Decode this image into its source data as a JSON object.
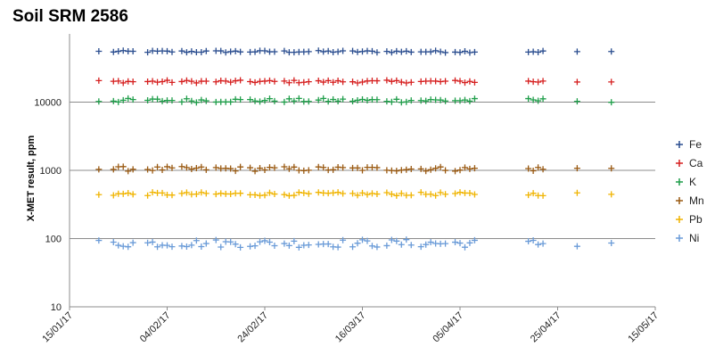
{
  "chart_data": {
    "type": "scatter",
    "title": "Soil SRM 2586",
    "xlabel": "",
    "ylabel": "X-MET result, ppm",
    "x_scale": "date",
    "y_scale": "log",
    "xlim": [
      "2017-01-15",
      "2017-05-15"
    ],
    "ylim": [
      10,
      100000
    ],
    "x_ticks": [
      "15/01/17",
      "04/02/17",
      "24/02/17",
      "16/03/17",
      "05/04/17",
      "25/04/17",
      "15/05/17"
    ],
    "y_ticks": [
      {
        "value": 10,
        "label": "10"
      },
      {
        "value": 100,
        "label": "100"
      },
      {
        "value": 1000,
        "label": "1000"
      },
      {
        "value": 10000,
        "label": "10000"
      }
    ],
    "grid": "horizontal major lines",
    "legend_position": "right",
    "marker": "+",
    "series": [
      {
        "name": "Fe",
        "color": "#2a4d8f",
        "base": 55000,
        "amp": 0.015
      },
      {
        "name": "Ca",
        "color": "#d62020",
        "base": 20000,
        "amp": 0.02
      },
      {
        "name": "K",
        "color": "#1f9e4a",
        "base": 10600,
        "amp": 0.03
      },
      {
        "name": "Mn",
        "color": "#9a5a12",
        "base": 1050,
        "amp": 0.035
      },
      {
        "name": "Pb",
        "color": "#f0b400",
        "base": 450,
        "amp": 0.025
      },
      {
        "name": "Ni",
        "color": "#6a9bd8",
        "base": 85,
        "amp": 0.06
      }
    ],
    "dates": [
      "2017-01-21",
      "2017-01-24",
      "2017-01-25",
      "2017-01-26",
      "2017-01-27",
      "2017-01-28",
      "2017-01-31",
      "2017-02-01",
      "2017-02-02",
      "2017-02-03",
      "2017-02-04",
      "2017-02-05",
      "2017-02-07",
      "2017-02-08",
      "2017-02-09",
      "2017-02-10",
      "2017-02-11",
      "2017-02-12",
      "2017-02-14",
      "2017-02-15",
      "2017-02-16",
      "2017-02-17",
      "2017-02-18",
      "2017-02-19",
      "2017-02-21",
      "2017-02-22",
      "2017-02-23",
      "2017-02-24",
      "2017-02-25",
      "2017-02-26",
      "2017-02-28",
      "2017-03-01",
      "2017-03-02",
      "2017-03-03",
      "2017-03-04",
      "2017-03-05",
      "2017-03-07",
      "2017-03-08",
      "2017-03-09",
      "2017-03-10",
      "2017-03-11",
      "2017-03-12",
      "2017-03-14",
      "2017-03-15",
      "2017-03-16",
      "2017-03-17",
      "2017-03-18",
      "2017-03-19",
      "2017-03-21",
      "2017-03-22",
      "2017-03-23",
      "2017-03-24",
      "2017-03-25",
      "2017-03-26",
      "2017-03-28",
      "2017-03-29",
      "2017-03-30",
      "2017-03-31",
      "2017-04-01",
      "2017-04-02",
      "2017-04-04",
      "2017-04-05",
      "2017-04-06",
      "2017-04-07",
      "2017-04-08",
      "2017-04-19",
      "2017-04-20",
      "2017-04-21",
      "2017-04-22",
      "2017-04-29",
      "2017-05-06"
    ]
  }
}
